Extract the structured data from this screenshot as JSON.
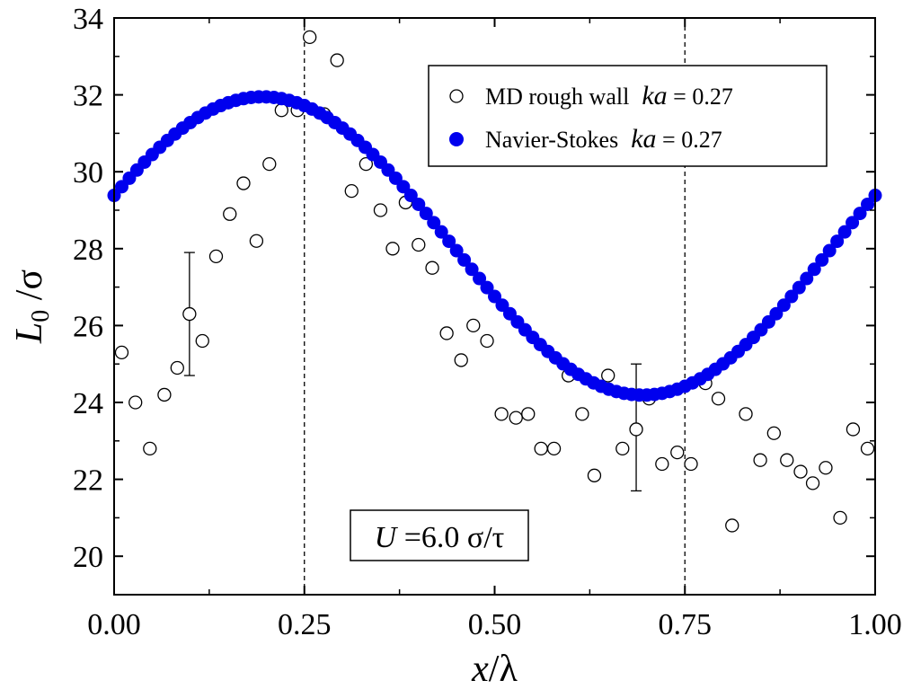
{
  "chart_data": {
    "type": "scatter",
    "xlabel": {
      "italic": "x",
      "rest": "/λ"
    },
    "ylabel": {
      "italic": "L",
      "sub": "0",
      "rest": " /σ"
    },
    "xlim": [
      0.0,
      1.0
    ],
    "ylim": [
      19.0,
      34.0
    ],
    "x_ticks": [
      0.0,
      0.25,
      0.5,
      0.75,
      1.0
    ],
    "x_tick_labels": [
      "0.00",
      "0.25",
      "0.50",
      "0.75",
      "1.00"
    ],
    "y_ticks": [
      20,
      22,
      24,
      26,
      28,
      30,
      32,
      34
    ],
    "y_tick_labels": [
      "20",
      "22",
      "24",
      "26",
      "28",
      "30",
      "32",
      "34"
    ],
    "vlines": [
      0.25,
      0.75
    ],
    "legend_position": "top-right",
    "series": [
      {
        "name": "MD rough wall",
        "name_param": {
          "italic": "ka",
          "rest": " = 0.27"
        },
        "marker": "open-circle",
        "color": "#000000",
        "x": [
          0.01,
          0.028,
          0.047,
          0.066,
          0.083,
          0.099,
          0.116,
          0.134,
          0.152,
          0.17,
          0.187,
          0.204,
          0.22,
          0.241,
          0.257,
          0.276,
          0.293,
          0.312,
          0.331,
          0.35,
          0.366,
          0.383,
          0.4,
          0.418,
          0.437,
          0.456,
          0.472,
          0.49,
          0.509,
          0.528,
          0.544,
          0.561,
          0.578,
          0.597,
          0.615,
          0.631,
          0.649,
          0.668,
          0.686,
          0.703,
          0.72,
          0.74,
          0.758,
          0.777,
          0.794,
          0.812,
          0.83,
          0.849,
          0.867,
          0.884,
          0.902,
          0.918,
          0.935,
          0.954,
          0.971,
          0.99
        ],
        "y": [
          25.3,
          24.0,
          22.8,
          24.2,
          24.9,
          26.3,
          25.6,
          27.8,
          28.9,
          29.7,
          28.2,
          30.2,
          31.6,
          31.6,
          33.5,
          31.5,
          32.9,
          29.5,
          30.2,
          29.0,
          28.0,
          29.2,
          28.1,
          27.5,
          25.8,
          25.1,
          26.0,
          25.6,
          23.7,
          23.6,
          23.7,
          22.8,
          22.8,
          24.7,
          23.7,
          22.1,
          24.7,
          22.8,
          23.3,
          24.1,
          22.4,
          22.7,
          22.4,
          24.5,
          24.1,
          20.8,
          23.7,
          22.5,
          23.2,
          22.5,
          22.2,
          21.9,
          22.3,
          21.0,
          23.3,
          22.8
        ],
        "error_bars": [
          {
            "x": 0.099,
            "y": 26.3,
            "low": 24.7,
            "high": 27.9
          },
          {
            "x": 0.686,
            "y": 23.3,
            "low": 21.7,
            "high": 25.0
          }
        ]
      },
      {
        "name": "Navier-Stokes",
        "name_param": {
          "italic": "ka",
          "rest": " = 0.27"
        },
        "marker": "filled-circle",
        "color": "#0000ee",
        "mean": 28.07,
        "amplitude": 3.88,
        "phase_peak_x": 0.195,
        "x_start": 0.0,
        "x_step": 0.01,
        "n_points": 101
      }
    ],
    "annotation": {
      "italic": "U",
      "rest": " =6.0 σ/τ"
    }
  }
}
